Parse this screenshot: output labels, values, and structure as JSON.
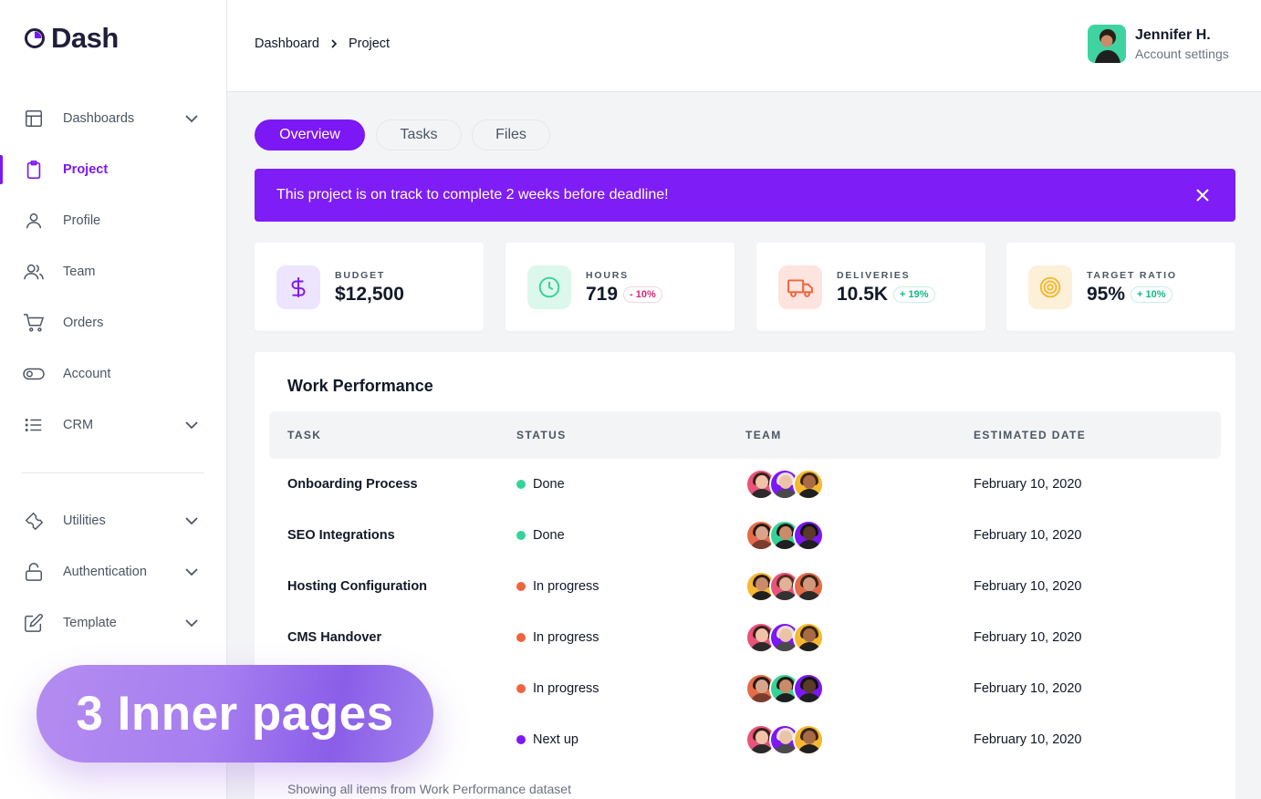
{
  "brand": {
    "name": "Dash"
  },
  "sidebar": {
    "items": [
      {
        "label": "Dashboards",
        "icon": "layout-icon",
        "has_chevron": true
      },
      {
        "label": "Project",
        "icon": "clipboard-icon",
        "active": true
      },
      {
        "label": "Profile",
        "icon": "user-icon"
      },
      {
        "label": "Team",
        "icon": "users-icon"
      },
      {
        "label": "Orders",
        "icon": "cart-icon"
      },
      {
        "label": "Account",
        "icon": "toggle-icon"
      },
      {
        "label": "CRM",
        "icon": "list-icon",
        "has_chevron": true
      },
      {
        "label": "Utilities",
        "icon": "wrench-icon",
        "has_chevron": true
      },
      {
        "label": "Authentication",
        "icon": "lock-icon",
        "has_chevron": true
      },
      {
        "label": "Template",
        "icon": "edit-icon",
        "has_chevron": true
      }
    ]
  },
  "header": {
    "breadcrumb": [
      "Dashboard",
      "Project"
    ],
    "user": {
      "name": "Jennifer H.",
      "subtitle": "Account settings"
    }
  },
  "tabs": [
    {
      "label": "Overview",
      "active": true
    },
    {
      "label": "Tasks",
      "active": false
    },
    {
      "label": "Files",
      "active": false
    }
  ],
  "banner": {
    "text": "This project is on track to complete 2 weeks before deadline!"
  },
  "stats": [
    {
      "label": "BUDGET",
      "value": "$12,500",
      "badge": "",
      "icon": "dollar-icon"
    },
    {
      "label": "HOURS",
      "value": "719",
      "badge": "- 10%",
      "badge_type": "negative",
      "icon": "clock-icon"
    },
    {
      "label": "DELIVERIES",
      "value": "10.5K",
      "badge": "+ 19%",
      "badge_type": "positive",
      "icon": "truck-icon"
    },
    {
      "label": "TARGET RATIO",
      "value": "95%",
      "badge": "+ 10%",
      "badge_type": "positive",
      "icon": "target-icon"
    }
  ],
  "table": {
    "title": "Work Performance",
    "headers": [
      "TASK",
      "STATUS",
      "TEAM",
      "ESTIMATED DATE"
    ],
    "rows": [
      {
        "task": "Onboarding Process",
        "status": "Done",
        "status_color": "#34d399",
        "date": "February 10, 2020"
      },
      {
        "task": "SEO Integrations",
        "status": "Done",
        "status_color": "#34d399",
        "date": "February 10, 2020"
      },
      {
        "task": "Hosting Configuration",
        "status": "In progress",
        "status_color": "#f0643c",
        "date": "February 10, 2020"
      },
      {
        "task": "CMS Handover",
        "status": "In progress",
        "status_color": "#f0643c",
        "date": "February 10, 2020"
      },
      {
        "task": "",
        "status": "In progress",
        "status_color": "#f0643c",
        "date": "February 10, 2020"
      },
      {
        "task": "",
        "status": "Next up",
        "status_color": "#7c17f5",
        "date": "February 10, 2020"
      }
    ],
    "footer": "Showing all items from Work Performance dataset"
  },
  "overlay": {
    "text": "3 Inner pages"
  },
  "colors": {
    "accent": "#7c17f5",
    "banner": "#7e1df5",
    "done": "#34d399",
    "progress": "#f0643c"
  }
}
